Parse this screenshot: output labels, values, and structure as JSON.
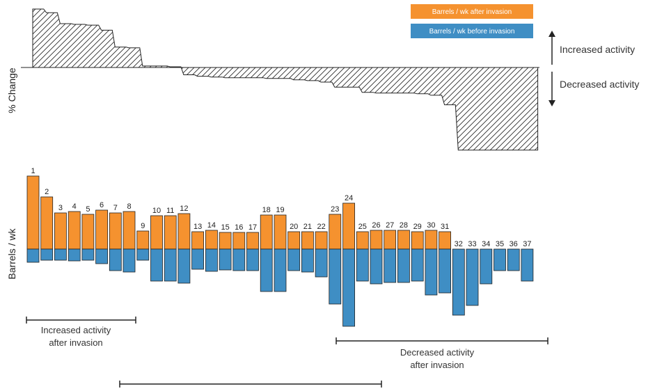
{
  "colors": {
    "after": "#f5922f",
    "before": "#3f8ec4",
    "stroke": "#222222"
  },
  "legend": {
    "after_label": "Barrels / wk after invasion",
    "before_label": "Barrels / wk before invasion"
  },
  "annotations": {
    "increased": "Increased activity",
    "decreased": "Decreased activity",
    "bracket_increase_line1": "Increased activity",
    "bracket_increase_line2": "after invasion",
    "bracket_decrease_line1": "Decreased activity",
    "bracket_decrease_line2": "after invasion"
  },
  "chart_data": [
    {
      "type": "area",
      "ylabel": "% Change",
      "x": [
        1,
        2,
        3,
        4,
        5,
        6,
        7,
        8,
        9,
        10,
        11,
        12,
        13,
        14,
        15,
        16,
        17,
        18,
        19,
        20,
        21,
        22,
        23,
        24,
        25,
        26,
        27,
        28,
        29,
        30,
        31,
        32,
        33,
        34,
        35,
        36,
        37
      ],
      "values": [
        80,
        75,
        60,
        59,
        58,
        51,
        28,
        27,
        2,
        2,
        1,
        -10,
        -12,
        -13,
        -14,
        -14,
        -14,
        -15,
        -15,
        -17,
        -18,
        -20,
        -27,
        -27,
        -34,
        -35,
        -35,
        -35,
        -36,
        -38,
        -51,
        -113,
        -113,
        -113,
        -113,
        -113,
        -113
      ],
      "baseline": 0,
      "ylim": [
        -120,
        90
      ]
    },
    {
      "type": "bar",
      "ylabel": "Barrels / wk",
      "categories": [
        "1",
        "2",
        "3",
        "4",
        "5",
        "6",
        "7",
        "8",
        "9",
        "10",
        "11",
        "12",
        "13",
        "14",
        "15",
        "16",
        "17",
        "18",
        "19",
        "20",
        "21",
        "22",
        "23",
        "24",
        "25",
        "26",
        "27",
        "28",
        "29",
        "30",
        "31",
        "32",
        "33",
        "34",
        "35",
        "36",
        "37"
      ],
      "series": [
        {
          "name": "Barrels / wk after invasion",
          "values": [
            105,
            75,
            52,
            54,
            50,
            56,
            52,
            54,
            26,
            48,
            48,
            51,
            25,
            27,
            24,
            24,
            24,
            49,
            49,
            25,
            25,
            25,
            50,
            66,
            25,
            27,
            27,
            27,
            25,
            27,
            25,
            0,
            0,
            0,
            0,
            0,
            0
          ]
        },
        {
          "name": "Barrels / wk before invasion",
          "values": [
            19,
            16,
            16,
            17,
            16,
            21,
            31,
            33,
            16,
            46,
            46,
            49,
            29,
            32,
            30,
            31,
            31,
            61,
            61,
            31,
            33,
            40,
            79,
            111,
            46,
            50,
            48,
            48,
            46,
            66,
            63,
            95,
            81,
            50,
            31,
            31,
            46
          ]
        }
      ]
    }
  ]
}
